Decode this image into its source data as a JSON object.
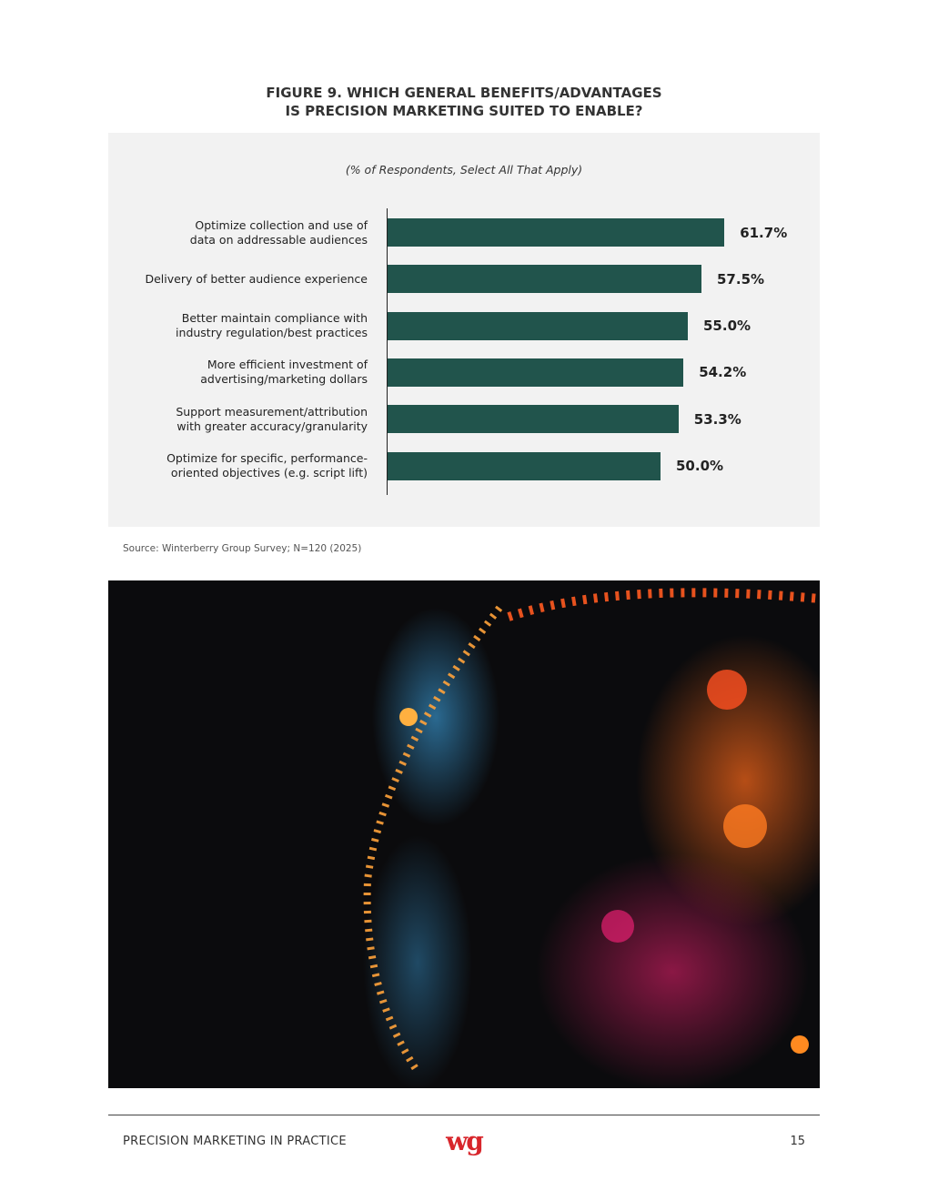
{
  "chart_data": {
    "type": "bar",
    "orientation": "horizontal",
    "title": "FIGURE 9. WHICH GENERAL BENEFITS/ADVANTAGES IS PRECISION MARKETING SUITED TO ENABLE?",
    "subtitle": "(% of Respondents, Select All That Apply)",
    "categories": [
      "Optimize collection and use of data on addressable audiences",
      "Delivery of better audience experience",
      "Better maintain compliance with industry regulation/best practices",
      "More efficient investment of advertising/marketing dollars",
      "Support measurement/attribution with greater accuracy/granularity",
      "Optimize for specific, performance-oriented objectives (e.g. script lift)"
    ],
    "values": [
      61.7,
      57.5,
      55.0,
      54.2,
      53.3,
      50.0
    ],
    "value_labels": [
      "61.7%",
      "57.5%",
      "55.0%",
      "54.2%",
      "53.3%",
      "50.0%"
    ],
    "color": "#21544c",
    "xlim": [
      0,
      70
    ]
  },
  "source": "Source: Winterberry Group Survey; N=120 (2025)",
  "footer": {
    "title": "PRECISION MARKETING IN PRACTICE",
    "logo": "wg",
    "page": "15"
  }
}
